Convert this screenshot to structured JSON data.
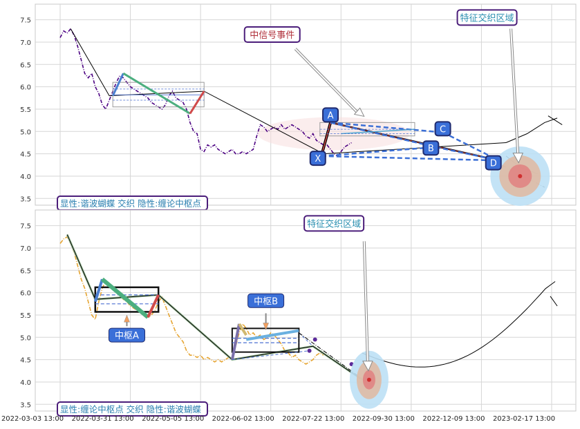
{
  "chart_data": [
    {
      "type": "line",
      "y_ticks": [
        3.5,
        4.0,
        4.5,
        5.0,
        5.5,
        6.0,
        6.5,
        7.0,
        7.5
      ],
      "ylim": [
        3.35,
        7.85
      ],
      "xlim": [
        0,
        70
      ],
      "x_tick_labels": [
        "2022-03-03 13:00",
        "2022-03-31 13:00",
        "2022-05-05 13:00",
        "2022-06-02 13:00",
        "2022-07-22 13:00",
        "2022-09-30 13:00",
        "2022-12-09 13:00",
        "2023-02-17 13:00"
      ],
      "x_tick_pos": [
        0,
        10,
        20,
        30,
        40,
        50,
        60,
        70
      ],
      "price": {
        "color": "#4b0082",
        "points": [
          [
            0,
            7.1
          ],
          [
            0.5,
            7.25
          ],
          [
            1,
            7.2
          ],
          [
            1.5,
            7.3
          ],
          [
            2,
            7.15
          ],
          [
            2.5,
            6.9
          ],
          [
            3,
            6.6
          ],
          [
            3.5,
            6.3
          ],
          [
            4,
            6.2
          ],
          [
            4.5,
            6.3
          ],
          [
            5,
            6.0
          ],
          [
            5.5,
            5.85
          ],
          [
            6,
            5.6
          ],
          [
            6.5,
            5.5
          ],
          [
            7,
            5.7
          ],
          [
            7.5,
            5.9
          ],
          [
            8,
            6.1
          ],
          [
            8.5,
            6.25
          ],
          [
            9,
            6.2
          ],
          [
            9.5,
            6.1
          ],
          [
            10,
            6.0
          ],
          [
            10.5,
            5.95
          ],
          [
            11,
            5.9
          ],
          [
            11.5,
            5.85
          ],
          [
            12,
            5.8
          ],
          [
            12.5,
            5.75
          ],
          [
            13,
            5.65
          ],
          [
            13.5,
            5.6
          ],
          [
            14,
            5.55
          ],
          [
            14.5,
            5.5
          ],
          [
            15,
            5.6
          ],
          [
            15.5,
            5.8
          ],
          [
            16,
            5.9
          ],
          [
            16.5,
            5.75
          ],
          [
            17,
            5.7
          ],
          [
            17.5,
            5.65
          ],
          [
            18,
            5.5
          ],
          [
            18.5,
            5.2
          ],
          [
            19,
            5.0
          ],
          [
            19.5,
            4.95
          ],
          [
            20,
            4.6
          ],
          [
            20.5,
            4.55
          ],
          [
            21,
            4.7
          ],
          [
            21.5,
            4.65
          ],
          [
            22,
            4.7
          ],
          [
            22.5,
            4.6
          ],
          [
            23,
            4.55
          ],
          [
            23.5,
            4.5
          ],
          [
            24,
            4.55
          ],
          [
            24.5,
            4.6
          ],
          [
            25,
            4.5
          ],
          [
            25.5,
            4.5
          ],
          [
            26,
            4.55
          ],
          [
            26.5,
            4.5
          ],
          [
            27,
            4.55
          ],
          [
            27.5,
            4.6
          ],
          [
            28,
            4.9
          ],
          [
            28.5,
            5.15
          ],
          [
            29,
            5.1
          ],
          [
            29.5,
            5.0
          ],
          [
            30,
            5.05
          ],
          [
            30.5,
            5.1
          ],
          [
            31,
            5.05
          ],
          [
            31.5,
            5.15
          ],
          [
            32,
            5.05
          ],
          [
            32.5,
            5.1
          ],
          [
            33,
            5.15
          ],
          [
            33.5,
            5.1
          ],
          [
            34,
            5.05
          ],
          [
            34.5,
            5.0
          ],
          [
            35,
            4.9
          ],
          [
            35.5,
            4.85
          ],
          [
            36,
            4.95
          ],
          [
            36.5,
            4.8
          ],
          [
            37,
            4.75
          ],
          [
            37.5,
            4.7
          ],
          [
            38,
            4.7
          ],
          [
            38.5,
            4.6
          ],
          [
            39,
            4.5
          ],
          [
            39.5,
            4.45
          ],
          [
            40,
            4.55
          ],
          [
            40.5,
            4.65
          ],
          [
            41,
            4.7
          ],
          [
            41.5,
            4.75
          ]
        ]
      },
      "annotations": {
        "event_label": "中信号事件",
        "zone_label": "特征交织区域",
        "points": [
          "A",
          "X",
          "B",
          "C",
          "D"
        ],
        "legend": "显性:谐波蝴蝶 交织 隐性:缠论中枢点"
      }
    },
    {
      "type": "line",
      "y_ticks": [
        3.5,
        4.0,
        4.5,
        5.0,
        5.5,
        6.0,
        6.5,
        7.0,
        7.5
      ],
      "ylim": [
        3.35,
        7.85
      ],
      "xlim": [
        0,
        70
      ],
      "x_tick_labels": [
        "2022-03-03 13:00",
        "2022-03-31 13:00",
        "2022-05-05 13:00",
        "2022-06-02 13:00",
        "2022-07-22 13:00",
        "2022-09-30 13:00",
        "2022-12-09 13:00",
        "2023-02-17 13:00"
      ],
      "x_tick_pos": [
        0,
        10,
        20,
        30,
        40,
        50,
        60,
        70
      ],
      "price": {
        "color": "#e6a532",
        "points": [
          [
            0,
            7.1
          ],
          [
            0.5,
            7.2
          ],
          [
            1,
            7.25
          ],
          [
            1.5,
            7.1
          ],
          [
            2,
            6.9
          ],
          [
            2.5,
            6.6
          ],
          [
            3,
            6.3
          ],
          [
            3.5,
            6.1
          ],
          [
            4,
            5.8
          ],
          [
            4.5,
            5.5
          ],
          [
            5,
            5.4
          ],
          [
            5.5,
            5.8
          ],
          [
            6,
            6.1
          ],
          [
            6.5,
            6.25
          ],
          [
            7,
            6.2
          ],
          [
            7.5,
            6.1
          ],
          [
            8,
            6.0
          ],
          [
            8.5,
            5.95
          ],
          [
            9,
            5.85
          ],
          [
            9.5,
            5.8
          ],
          [
            10,
            5.7
          ],
          [
            10.5,
            5.65
          ],
          [
            11,
            5.6
          ],
          [
            11.5,
            5.55
          ],
          [
            12,
            5.5
          ],
          [
            12.5,
            5.45
          ],
          [
            13,
            5.5
          ],
          [
            13.5,
            5.6
          ],
          [
            14,
            5.8
          ],
          [
            14.5,
            5.9
          ],
          [
            15,
            5.7
          ],
          [
            15.5,
            5.5
          ],
          [
            16,
            5.3
          ],
          [
            16.5,
            5.1
          ],
          [
            17,
            5.0
          ],
          [
            17.5,
            4.9
          ],
          [
            18,
            4.7
          ],
          [
            18.5,
            4.6
          ],
          [
            19,
            4.6
          ],
          [
            19.5,
            4.55
          ],
          [
            20,
            4.6
          ],
          [
            20.5,
            4.5
          ],
          [
            21,
            4.55
          ],
          [
            21.5,
            4.5
          ],
          [
            22,
            4.45
          ],
          [
            22.5,
            4.5
          ],
          [
            23,
            4.45
          ],
          [
            23.5,
            4.5
          ],
          [
            24,
            4.55
          ],
          [
            24.5,
            4.5
          ],
          [
            25,
            4.8
          ],
          [
            25.5,
            5.1
          ],
          [
            26,
            5.3
          ],
          [
            26.5,
            5.2
          ],
          [
            27,
            5.05
          ],
          [
            27.5,
            5.1
          ],
          [
            28,
            5.0
          ],
          [
            28.5,
            5.05
          ],
          [
            29,
            4.95
          ],
          [
            29.5,
            5.0
          ],
          [
            30,
            5.1
          ],
          [
            30.5,
            5.05
          ],
          [
            31,
            4.95
          ],
          [
            31.5,
            4.85
          ],
          [
            32,
            4.7
          ],
          [
            32.5,
            4.65
          ],
          [
            33,
            4.55
          ],
          [
            33.5,
            4.6
          ],
          [
            34,
            4.5
          ],
          [
            34.5,
            4.45
          ],
          [
            35,
            4.4
          ],
          [
            35.5,
            4.45
          ],
          [
            36,
            4.5
          ],
          [
            36.5,
            4.6
          ],
          [
            37,
            4.65
          ],
          [
            37.5,
            4.6
          ]
        ]
      },
      "annotations": {
        "box_label_a": "中枢A",
        "box_label_b": "中枢B",
        "zone_label": "特征交织区域",
        "legend": "显性:缠论中枢点 交织 隐性:谐波蝴蝶"
      }
    }
  ]
}
